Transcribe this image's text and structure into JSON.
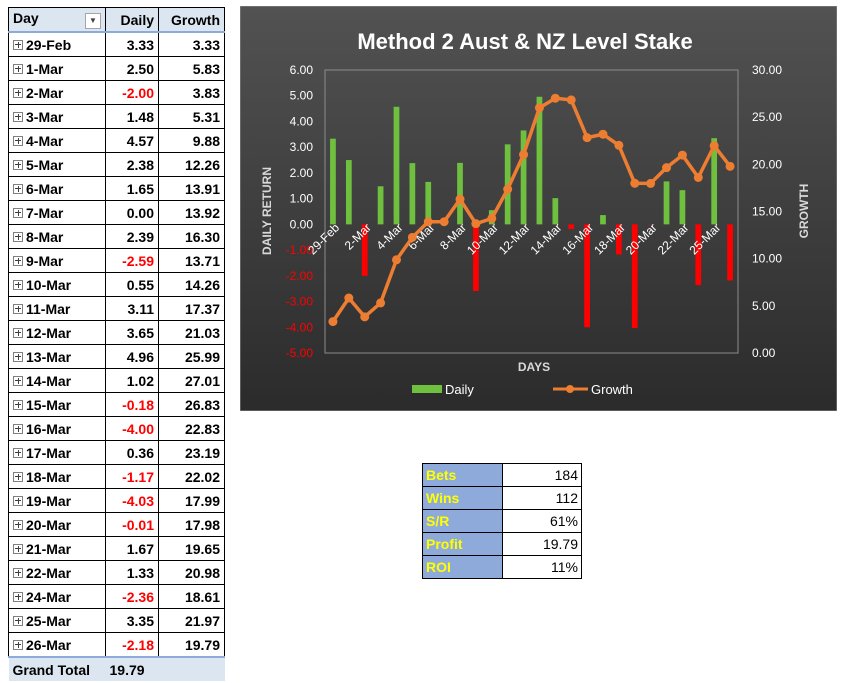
{
  "pivot": {
    "headers": {
      "day": "Day",
      "daily": "Daily",
      "growth": "Growth"
    },
    "rows": [
      {
        "day": "29-Feb",
        "daily": "3.33",
        "growth": "3.33",
        "negative": false
      },
      {
        "day": "1-Mar",
        "daily": "2.50",
        "growth": "5.83",
        "negative": false
      },
      {
        "day": "2-Mar",
        "daily": "-2.00",
        "growth": "3.83",
        "negative": true
      },
      {
        "day": "3-Mar",
        "daily": "1.48",
        "growth": "5.31",
        "negative": false
      },
      {
        "day": "4-Mar",
        "daily": "4.57",
        "growth": "9.88",
        "negative": false
      },
      {
        "day": "5-Mar",
        "daily": "2.38",
        "growth": "12.26",
        "negative": false
      },
      {
        "day": "6-Mar",
        "daily": "1.65",
        "growth": "13.91",
        "negative": false
      },
      {
        "day": "7-Mar",
        "daily": "0.00",
        "growth": "13.92",
        "negative": false
      },
      {
        "day": "8-Mar",
        "daily": "2.39",
        "growth": "16.30",
        "negative": false
      },
      {
        "day": "9-Mar",
        "daily": "-2.59",
        "growth": "13.71",
        "negative": true
      },
      {
        "day": "10-Mar",
        "daily": "0.55",
        "growth": "14.26",
        "negative": false
      },
      {
        "day": "11-Mar",
        "daily": "3.11",
        "growth": "17.37",
        "negative": false
      },
      {
        "day": "12-Mar",
        "daily": "3.65",
        "growth": "21.03",
        "negative": false
      },
      {
        "day": "13-Mar",
        "daily": "4.96",
        "growth": "25.99",
        "negative": false
      },
      {
        "day": "14-Mar",
        "daily": "1.02",
        "growth": "27.01",
        "negative": false
      },
      {
        "day": "15-Mar",
        "daily": "-0.18",
        "growth": "26.83",
        "negative": true
      },
      {
        "day": "16-Mar",
        "daily": "-4.00",
        "growth": "22.83",
        "negative": true
      },
      {
        "day": "17-Mar",
        "daily": "0.36",
        "growth": "23.19",
        "negative": false
      },
      {
        "day": "18-Mar",
        "daily": "-1.17",
        "growth": "22.02",
        "negative": true
      },
      {
        "day": "19-Mar",
        "daily": "-4.03",
        "growth": "17.99",
        "negative": true
      },
      {
        "day": "20-Mar",
        "daily": "-0.01",
        "growth": "17.98",
        "negative": true
      },
      {
        "day": "21-Mar",
        "daily": "1.67",
        "growth": "19.65",
        "negative": false
      },
      {
        "day": "22-Mar",
        "daily": "1.33",
        "growth": "20.98",
        "negative": false
      },
      {
        "day": "24-Mar",
        "daily": "-2.36",
        "growth": "18.61",
        "negative": true
      },
      {
        "day": "25-Mar",
        "daily": "3.35",
        "growth": "21.97",
        "negative": false
      },
      {
        "day": "26-Mar",
        "daily": "-2.18",
        "growth": "19.79",
        "negative": true
      }
    ],
    "grand_total_label": "Grand Total",
    "grand_total_value": "19.79",
    "negative_color": "#ff0000",
    "header_bg": "#dce6f1"
  },
  "stats": [
    {
      "label": "Bets",
      "value": "184"
    },
    {
      "label": "Wins",
      "value": "112"
    },
    {
      "label": "S/R",
      "value": "61%"
    },
    {
      "label": "Profit",
      "value": "19.79"
    },
    {
      "label": "ROI",
      "value": "11%"
    }
  ],
  "chart_data": {
    "type": "bar",
    "title": "Method 2 Aust & NZ Level Stake",
    "xlabel": "DAYS",
    "ylabel": "DAILY RETURN",
    "y2label": "GROWTH",
    "ylim": [
      -5,
      6
    ],
    "y_ticks": [
      "-5.00",
      "-4.00",
      "-3.00",
      "-2.00",
      "-1.00",
      "0.00",
      "1.00",
      "2.00",
      "3.00",
      "4.00",
      "5.00",
      "6.00"
    ],
    "y2lim": [
      0,
      30
    ],
    "y2_ticks": [
      "0.00",
      "5.00",
      "10.00",
      "15.00",
      "20.00",
      "25.00",
      "30.00"
    ],
    "categories": [
      "29-Feb",
      "1-Mar",
      "2-Mar",
      "3-Mar",
      "4-Mar",
      "5-Mar",
      "6-Mar",
      "7-Mar",
      "8-Mar",
      "9-Mar",
      "10-Mar",
      "11-Mar",
      "12-Mar",
      "13-Mar",
      "14-Mar",
      "15-Mar",
      "16-Mar",
      "17-Mar",
      "18-Mar",
      "19-Mar",
      "20-Mar",
      "21-Mar",
      "22-Mar",
      "24-Mar",
      "25-Mar",
      "26-Mar"
    ],
    "x_tick_labels": [
      "29-Feb",
      "2-Mar",
      "4-Mar",
      "6-Mar",
      "8-Mar",
      "10-Mar",
      "12-Mar",
      "14-Mar",
      "16-Mar",
      "18-Mar",
      "20-Mar",
      "22-Mar",
      "25-Mar"
    ],
    "series": [
      {
        "name": "Daily",
        "type": "bar",
        "axis": "left",
        "values": [
          3.33,
          2.5,
          -2.0,
          1.48,
          4.57,
          2.38,
          1.65,
          0.0,
          2.39,
          -2.59,
          0.55,
          3.11,
          3.65,
          4.96,
          1.02,
          -0.18,
          -4.0,
          0.36,
          -1.17,
          -4.03,
          -0.01,
          1.67,
          1.33,
          -2.36,
          3.35,
          -2.18
        ]
      },
      {
        "name": "Growth",
        "type": "line",
        "axis": "right",
        "values": [
          3.33,
          5.83,
          3.83,
          5.31,
          9.88,
          12.26,
          13.91,
          13.92,
          16.3,
          13.71,
          14.26,
          17.37,
          21.03,
          25.99,
          27.01,
          26.83,
          22.83,
          23.19,
          22.02,
          17.99,
          17.98,
          19.65,
          20.98,
          18.61,
          21.97,
          19.79
        ]
      }
    ],
    "legend": "bottom",
    "grid": false,
    "colors": {
      "background_top": "#525252",
      "background_bottom": "#2b2b2b",
      "positive_bar": "#70c040",
      "negative_bar": "#ff0000",
      "line": "#ed7d31",
      "negative_tick_label": "#ff0000",
      "text": "#ffffff",
      "axis_label": "#d9d9d9"
    }
  }
}
